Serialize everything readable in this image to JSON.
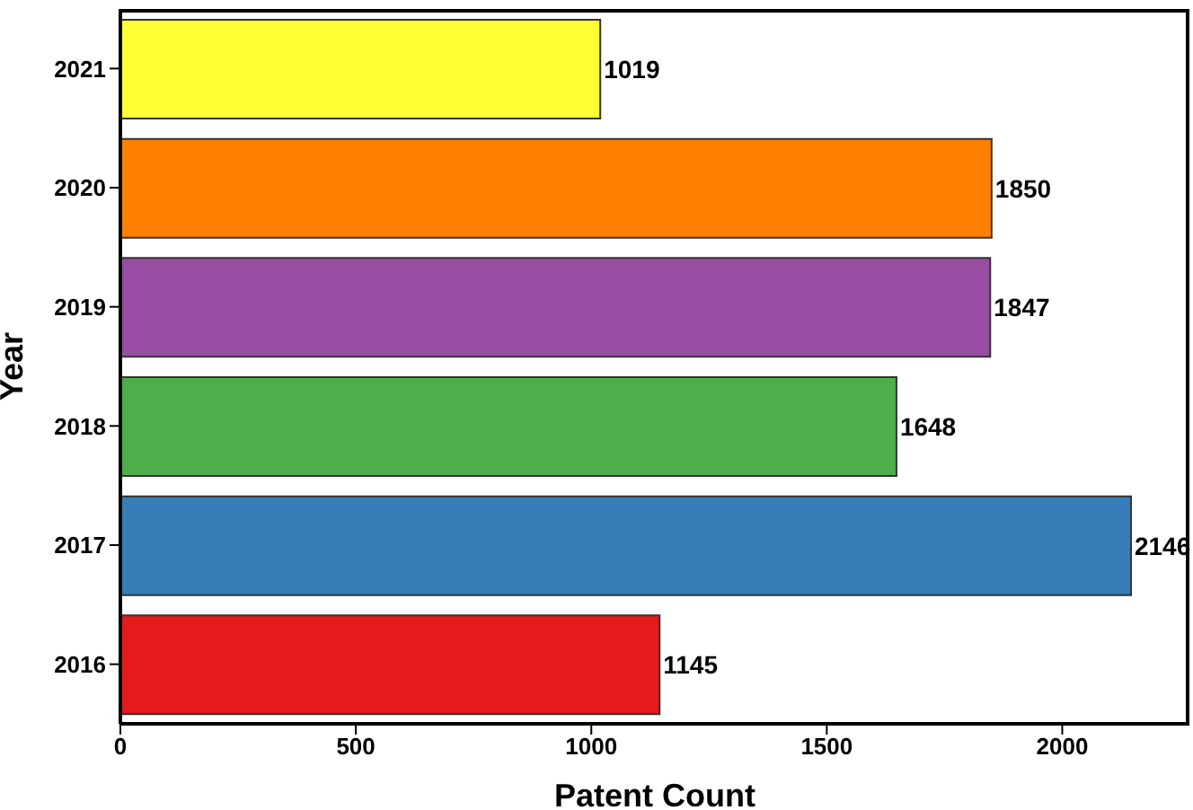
{
  "chart_data": {
    "type": "bar",
    "orientation": "horizontal",
    "xlabel": "Patent Count",
    "ylabel": "Year",
    "categories": [
      "2021",
      "2020",
      "2019",
      "2018",
      "2017",
      "2016"
    ],
    "values": [
      1019,
      1850,
      1847,
      1648,
      2146,
      1145
    ],
    "colors": [
      "#ffff33",
      "#ff7f00",
      "#984ea3",
      "#4daf4a",
      "#377eb8",
      "#e41a1c"
    ],
    "xlim": [
      0,
      2270
    ],
    "xticks": [
      0,
      500,
      1000,
      1500,
      2000
    ],
    "data_labels": true,
    "grid": false,
    "legend": false
  }
}
